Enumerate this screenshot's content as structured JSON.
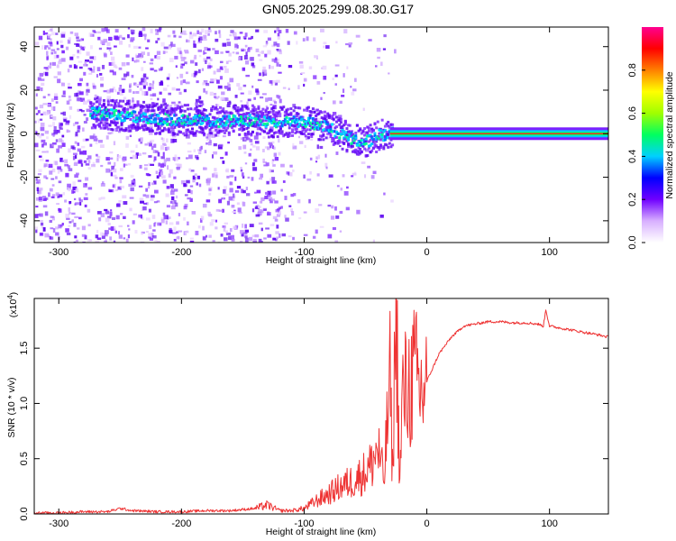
{
  "title": "GN05.2025.299.08.30.G17",
  "chart_data": [
    {
      "type": "heatmap",
      "name": "spectrogram",
      "xlabel": "Height of straight line (km)",
      "ylabel": "Frequency (Hz)",
      "xlim": [
        -320,
        148
      ],
      "ylim": [
        -50,
        49
      ],
      "xticks": [
        -300,
        -200,
        -100,
        0,
        100
      ],
      "yticks": [
        -40,
        -20,
        0,
        20,
        40
      ],
      "colorbar": {
        "label": "Normalized spectral amplitude",
        "range": [
          0,
          1
        ],
        "ticks": [
          "0.0",
          "0.2",
          "0.4",
          "0.6",
          "0.8"
        ],
        "tick_values": [
          0,
          0.2,
          0.4,
          0.6,
          0.8
        ],
        "colors": [
          "#ffffff",
          "#d8b0ff",
          "#7000ff",
          "#0000ff",
          "#00d0ff",
          "#00ff60",
          "#a0ff00",
          "#ffff00",
          "#ff8000",
          "#ff0000",
          "#ff0090"
        ]
      },
      "ridge": {
        "x": [
          -270,
          -250,
          -230,
          -210,
          -190,
          -170,
          -150,
          -130,
          -115,
          -100,
          -90,
          -80,
          -70,
          -60,
          -55,
          -50,
          -45,
          -40,
          -35,
          -30,
          -25,
          -20,
          -15,
          -10,
          -5,
          0,
          50,
          148
        ],
        "y": [
          10,
          9,
          8,
          7,
          7,
          6,
          7,
          6,
          6,
          6,
          5,
          3,
          0,
          -2,
          -3,
          -3,
          -2,
          0,
          0,
          1,
          1,
          2,
          3,
          2,
          1,
          0,
          0,
          0
        ]
      },
      "carrier": {
        "x_start": -30,
        "x_end": 148,
        "frequency": 0
      }
    },
    {
      "type": "line",
      "name": "snr",
      "xlabel": "Height of straight line (km)",
      "ylabel": "SNR (10 * v/v)",
      "multiplier": "(x10",
      "multiplier_exp": "4",
      "multiplier_close": ")",
      "xlim": [
        -320,
        148
      ],
      "ylim": [
        0,
        1.95
      ],
      "xticks": [
        -300,
        -200,
        -100,
        0,
        100
      ],
      "yticks": [
        "0.0",
        "0.5",
        "1.0",
        "1.5"
      ],
      "ytick_values": [
        0,
        0.5,
        1.0,
        1.5
      ],
      "color": "#ee3333",
      "x": [
        -320,
        -300,
        -280,
        -260,
        -250,
        -240,
        -220,
        -200,
        -180,
        -160,
        -140,
        -130,
        -120,
        -110,
        -100,
        -90,
        -80,
        -70,
        -60,
        -50,
        -45,
        -40,
        -35,
        -30,
        -28,
        -25,
        -22,
        -20,
        -15,
        -10,
        -5,
        0,
        10,
        20,
        30,
        40,
        50,
        60,
        70,
        80,
        90,
        95,
        97,
        100,
        110,
        120,
        130,
        140,
        148
      ],
      "y": [
        0.01,
        0.01,
        0.02,
        0.02,
        0.05,
        0.03,
        0.02,
        0.02,
        0.03,
        0.03,
        0.05,
        0.08,
        0.03,
        0.03,
        0.05,
        0.12,
        0.18,
        0.25,
        0.3,
        0.38,
        0.45,
        0.6,
        0.3,
        1.2,
        0.4,
        1.9,
        0.25,
        1.05,
        1.15,
        1.25,
        1.1,
        1.2,
        1.45,
        1.6,
        1.7,
        1.72,
        1.74,
        1.74,
        1.73,
        1.73,
        1.72,
        1.7,
        1.85,
        1.7,
        1.68,
        1.66,
        1.64,
        1.62,
        1.6
      ]
    }
  ]
}
